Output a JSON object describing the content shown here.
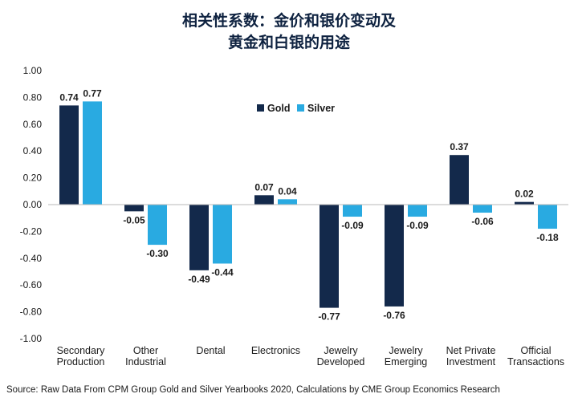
{
  "chart_data": {
    "type": "bar",
    "title_lines": [
      "相关性系数：金价和银价变动及",
      "黄金和白银的用途"
    ],
    "categories": [
      [
        "Secondary",
        "Production"
      ],
      [
        "Other",
        "Industrial"
      ],
      [
        "Dental"
      ],
      [
        "Electronics"
      ],
      [
        "Jewelry",
        "Developed"
      ],
      [
        "Jewelry",
        "Emerging"
      ],
      [
        "Net Private",
        "Investment"
      ],
      [
        "Official",
        "Transactions"
      ]
    ],
    "series": [
      {
        "name": "Gold",
        "color": "#13294b",
        "values": [
          0.74,
          -0.05,
          -0.49,
          0.07,
          -0.77,
          -0.76,
          0.37,
          0.02
        ],
        "labels": [
          "0.74",
          "-0.05",
          "-0.49",
          "0.07",
          "-0.77",
          "-0.76",
          "0.37",
          "0.02"
        ]
      },
      {
        "name": "Silver",
        "color": "#29aae1",
        "values": [
          0.77,
          -0.3,
          -0.44,
          0.04,
          -0.09,
          -0.09,
          -0.06,
          -0.18
        ],
        "labels": [
          "0.77",
          "-0.30",
          "-0.44",
          "0.04",
          "-0.09",
          "-0.09",
          "-0.06",
          "-0.18"
        ]
      }
    ],
    "ylim": [
      -1.0,
      1.0
    ],
    "yticks": [
      "1.00",
      "0.80",
      "0.60",
      "0.40",
      "0.20",
      "0.00",
      "-0.20",
      "-0.40",
      "-0.60",
      "-0.80",
      "-1.00"
    ],
    "ytick_values": [
      1.0,
      0.8,
      0.6,
      0.4,
      0.2,
      0.0,
      -0.2,
      -0.4,
      -0.6,
      -0.8,
      -1.0
    ],
    "legend_position": "top-center",
    "grid": false,
    "source": "Source: Raw Data From CPM Group Gold and Silver Yearbooks 2020, Calculations by CME Group Economics Research"
  }
}
